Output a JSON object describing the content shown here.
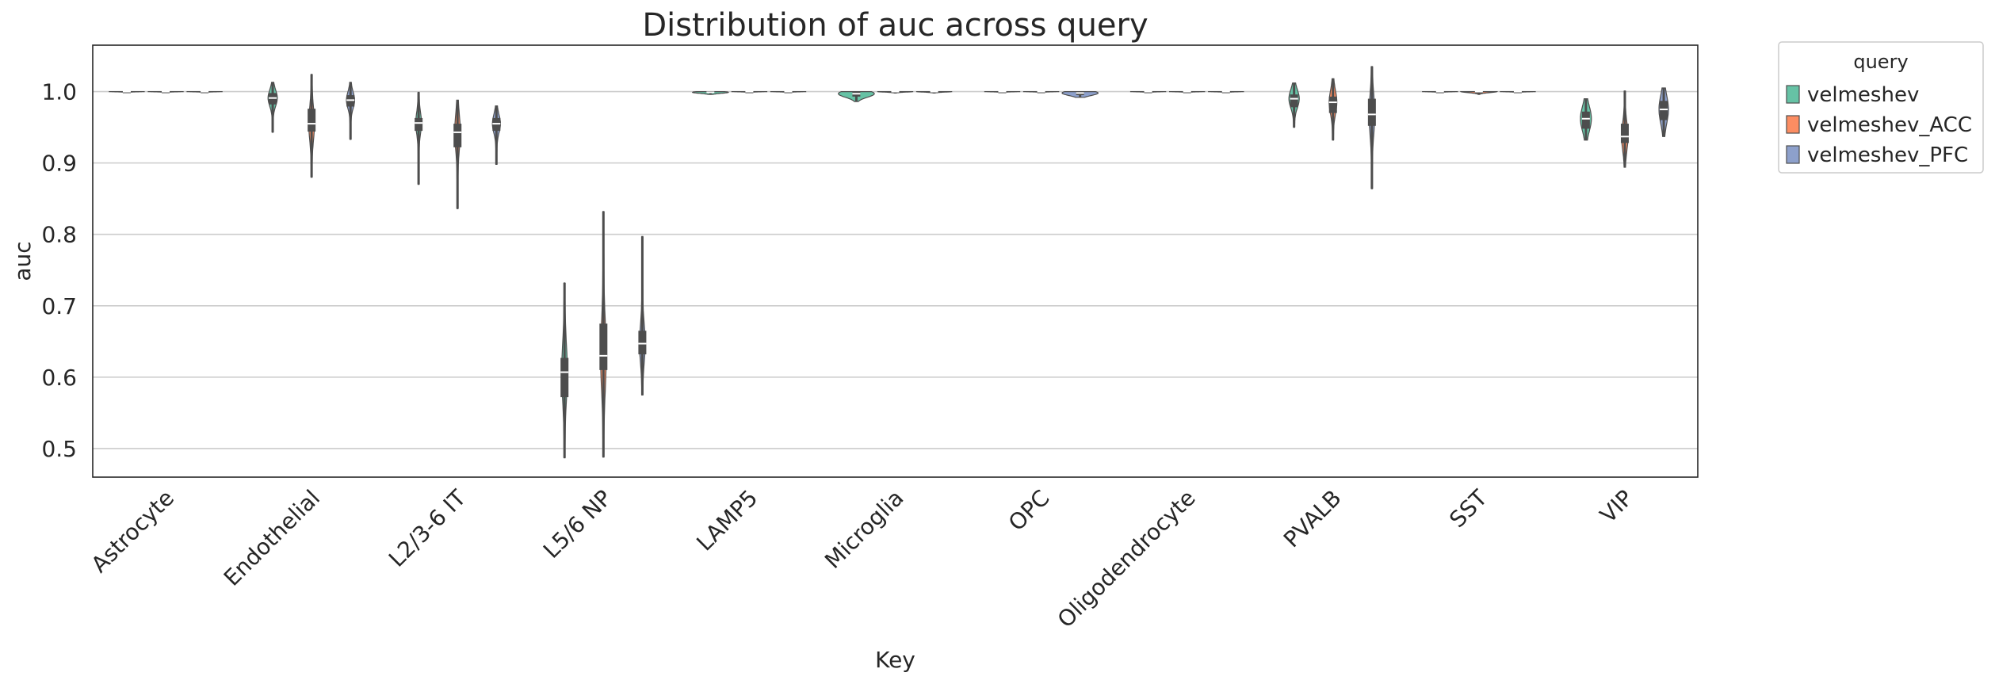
{
  "chart_data": {
    "type": "violin",
    "title": "Distribution of auc across query",
    "xlabel": "Key",
    "ylabel": "auc",
    "ylim": [
      0.46,
      1.065
    ],
    "yticks": [
      0.5,
      0.6,
      0.7,
      0.8,
      0.9,
      1.0
    ],
    "ytick_labels": [
      "0.5",
      "0.6",
      "0.7",
      "0.8",
      "0.9",
      "1.0"
    ],
    "grid": "horizontal",
    "categories": [
      "Astrocyte",
      "Endothelial",
      "L2/3-6 IT",
      "L5/6 NP",
      "LAMP5",
      "Microglia",
      "OPC",
      "Oligodendrocyte",
      "PVALB",
      "SST",
      "VIP"
    ],
    "legend": {
      "title": "query",
      "placement": "outside-top-right"
    },
    "series": [
      {
        "name": "velmeshev",
        "color": "#66c2a5",
        "values": [
          {
            "min": 0.999,
            "q1": 0.9995,
            "median": 1.0,
            "q3": 1.0,
            "max": 1.0
          },
          {
            "min": 0.943,
            "q1": 0.982,
            "median": 0.991,
            "q3": 0.998,
            "max": 1.013
          },
          {
            "min": 0.87,
            "q1": 0.945,
            "median": 0.956,
            "q3": 0.963,
            "max": 0.999
          },
          {
            "min": 0.487,
            "q1": 0.572,
            "median": 0.607,
            "q3": 0.627,
            "max": 0.732
          },
          {
            "min": 0.996,
            "q1": 0.998,
            "median": 0.999,
            "q3": 1.0,
            "max": 1.0
          },
          {
            "min": 0.986,
            "q1": 0.993,
            "median": 0.997,
            "q3": 1.0,
            "max": 1.0
          },
          {
            "min": 0.999,
            "q1": 0.9995,
            "median": 1.0,
            "q3": 1.0,
            "max": 1.0
          },
          {
            "min": 0.999,
            "q1": 0.9995,
            "median": 1.0,
            "q3": 1.0,
            "max": 1.0
          },
          {
            "min": 0.95,
            "q1": 0.978,
            "median": 0.99,
            "q3": 0.996,
            "max": 1.012
          },
          {
            "min": 0.999,
            "q1": 0.9995,
            "median": 1.0,
            "q3": 1.0,
            "max": 1.0
          },
          {
            "min": 0.932,
            "q1": 0.948,
            "median": 0.962,
            "q3": 0.972,
            "max": 0.99
          }
        ]
      },
      {
        "name": "velmeshev_ACC",
        "color": "#fc8d62",
        "values": [
          {
            "min": 0.999,
            "q1": 0.9995,
            "median": 1.0,
            "q3": 1.0,
            "max": 1.0
          },
          {
            "min": 0.88,
            "q1": 0.944,
            "median": 0.955,
            "q3": 0.976,
            "max": 1.024
          },
          {
            "min": 0.836,
            "q1": 0.922,
            "median": 0.943,
            "q3": 0.955,
            "max": 0.988
          },
          {
            "min": 0.488,
            "q1": 0.61,
            "median": 0.63,
            "q3": 0.675,
            "max": 0.832
          },
          {
            "min": 0.999,
            "q1": 0.9995,
            "median": 1.0,
            "q3": 1.0,
            "max": 1.0
          },
          {
            "min": 0.998,
            "q1": 0.999,
            "median": 1.0,
            "q3": 1.0,
            "max": 1.0
          },
          {
            "min": 0.999,
            "q1": 0.9995,
            "median": 1.0,
            "q3": 1.0,
            "max": 1.0
          },
          {
            "min": 0.999,
            "q1": 0.9995,
            "median": 1.0,
            "q3": 1.0,
            "max": 1.0
          },
          {
            "min": 0.932,
            "q1": 0.97,
            "median": 0.985,
            "q3": 0.993,
            "max": 1.018
          },
          {
            "min": 0.996,
            "q1": 0.998,
            "median": 1.0,
            "q3": 1.0,
            "max": 1.0
          },
          {
            "min": 0.894,
            "q1": 0.928,
            "median": 0.937,
            "q3": 0.955,
            "max": 1.001
          }
        ]
      },
      {
        "name": "velmeshev_PFC",
        "color": "#8da0cb",
        "values": [
          {
            "min": 0.999,
            "q1": 0.9995,
            "median": 1.0,
            "q3": 1.0,
            "max": 1.0
          },
          {
            "min": 0.933,
            "q1": 0.979,
            "median": 0.988,
            "q3": 0.995,
            "max": 1.013
          },
          {
            "min": 0.898,
            "q1": 0.945,
            "median": 0.955,
            "q3": 0.963,
            "max": 0.98
          },
          {
            "min": 0.575,
            "q1": 0.632,
            "median": 0.647,
            "q3": 0.665,
            "max": 0.797
          },
          {
            "min": 0.999,
            "q1": 0.9995,
            "median": 1.0,
            "q3": 1.0,
            "max": 1.0
          },
          {
            "min": 0.998,
            "q1": 0.999,
            "median": 1.0,
            "q3": 1.0,
            "max": 1.0
          },
          {
            "min": 0.992,
            "q1": 0.995,
            "median": 0.998,
            "q3": 1.0,
            "max": 1.0
          },
          {
            "min": 0.999,
            "q1": 0.9995,
            "median": 1.0,
            "q3": 1.0,
            "max": 1.0
          },
          {
            "min": 0.864,
            "q1": 0.952,
            "median": 0.968,
            "q3": 0.99,
            "max": 1.035
          },
          {
            "min": 0.999,
            "q1": 0.9995,
            "median": 1.0,
            "q3": 1.0,
            "max": 1.0
          },
          {
            "min": 0.937,
            "q1": 0.96,
            "median": 0.975,
            "q3": 0.987,
            "max": 1.005
          }
        ]
      }
    ]
  }
}
